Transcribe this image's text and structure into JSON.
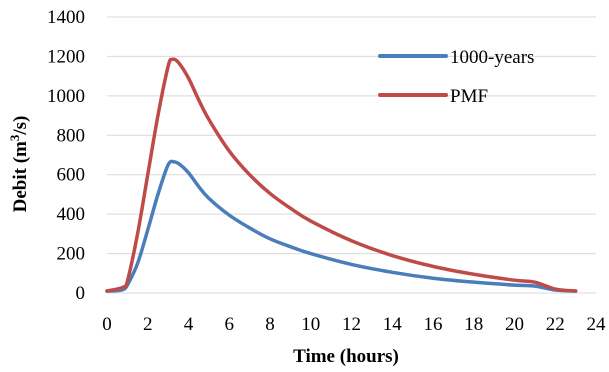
{
  "chart_data": {
    "type": "line",
    "xlabel": "Time (hours)",
    "ylabel_main": "Debit (m",
    "ylabel_sup": "3",
    "ylabel_end": "/s)",
    "xlim": [
      0,
      24
    ],
    "ylim": [
      0,
      1400
    ],
    "x_ticks": [
      "0",
      "2",
      "4",
      "6",
      "8",
      "10",
      "12",
      "14",
      "16",
      "18",
      "20",
      "22",
      "24"
    ],
    "y_ticks": [
      "0",
      "200",
      "400",
      "600",
      "800",
      "1000",
      "1200",
      "1400"
    ],
    "grid": "horizontal",
    "legend_position": "top-right",
    "series": [
      {
        "name": "1000-years",
        "color": "#4a7ebb",
        "x": [
          0,
          0.5,
          0.8,
          1.0,
          1.5,
          2.0,
          2.5,
          3.0,
          3.3,
          3.6,
          4.0,
          4.5,
          5.0,
          6.0,
          7.0,
          8.0,
          9.0,
          10.0,
          12.0,
          14.0,
          16.0,
          18.0,
          20.0,
          21.0,
          22.0,
          23.0
        ],
        "values": [
          10,
          12,
          18,
          40,
          150,
          320,
          500,
          650,
          665,
          650,
          610,
          540,
          480,
          395,
          330,
          275,
          235,
          200,
          145,
          105,
          75,
          55,
          40,
          35,
          15,
          10
        ]
      },
      {
        "name": "PMF",
        "color": "#be4b48",
        "x": [
          0,
          0.5,
          0.8,
          1.0,
          1.5,
          2.0,
          2.5,
          3.0,
          3.2,
          3.5,
          4.0,
          4.5,
          5.0,
          6.0,
          7.0,
          8.0,
          9.0,
          10.0,
          12.0,
          14.0,
          16.0,
          18.0,
          20.0,
          21.0,
          22.0,
          23.0
        ],
        "values": [
          10,
          20,
          30,
          60,
          300,
          600,
          900,
          1150,
          1185,
          1170,
          1090,
          980,
          880,
          720,
          600,
          505,
          430,
          365,
          265,
          190,
          135,
          95,
          65,
          55,
          20,
          10
        ]
      }
    ]
  }
}
